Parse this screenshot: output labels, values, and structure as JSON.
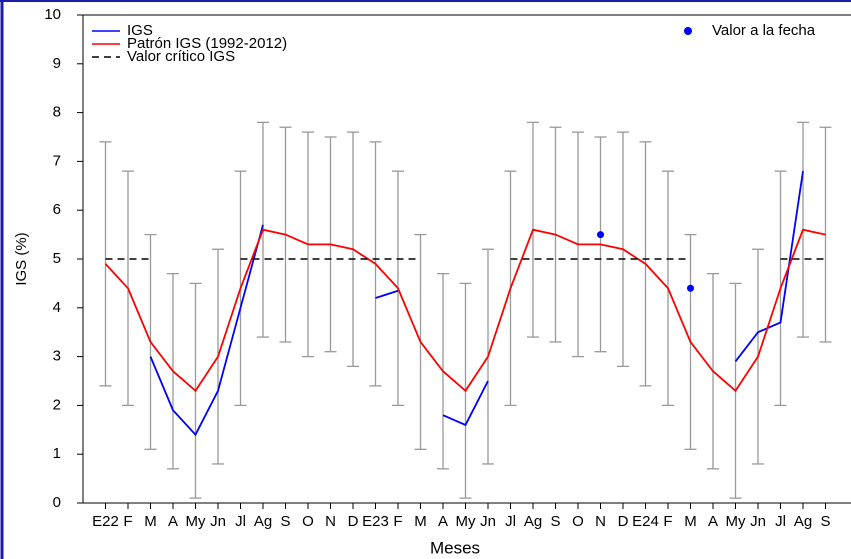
{
  "chart_data": {
    "type": "line",
    "x_label": "Meses",
    "y_label": "IGS (%)",
    "categories": [
      "E22",
      "F",
      "M",
      "A",
      "My",
      "Jn",
      "Jl",
      "Ag",
      "S",
      "O",
      "N",
      "D",
      "E23",
      "F",
      "M",
      "A",
      "My",
      "Jn",
      "Jl",
      "Ag",
      "S",
      "O",
      "N",
      "D",
      "E24",
      "F",
      "M",
      "A",
      "My",
      "Jn",
      "Jl",
      "Ag",
      "S"
    ],
    "ylim": [
      0,
      10
    ],
    "yticks": [
      0,
      1,
      2,
      3,
      4,
      5,
      6,
      7,
      8,
      9,
      10
    ],
    "series": [
      {
        "name": "IGS",
        "color": "#0000ff",
        "style": "solid",
        "values": [
          null,
          null,
          3.0,
          1.9,
          1.4,
          2.3,
          4.0,
          5.7,
          null,
          null,
          null,
          null,
          4.2,
          4.35,
          null,
          1.8,
          1.6,
          2.5,
          null,
          null,
          null,
          null,
          null,
          null,
          null,
          null,
          null,
          null,
          2.9,
          3.5,
          3.7,
          6.8,
          null
        ]
      },
      {
        "name": "Patrón IGS (1992-2012)",
        "color": "#ff0000",
        "style": "solid",
        "values": [
          4.9,
          4.4,
          3.3,
          2.7,
          2.3,
          3.0,
          4.4,
          5.6,
          5.5,
          5.3,
          5.3,
          5.2,
          4.9,
          4.4,
          3.3,
          2.7,
          2.3,
          3.0,
          4.4,
          5.6,
          5.5,
          5.3,
          5.3,
          5.2,
          4.9,
          4.4,
          3.3,
          2.7,
          2.3,
          3.0,
          4.4,
          5.6,
          5.5
        ]
      },
      {
        "name": "Valor crítico IGS",
        "color": "#000000",
        "style": "dashed",
        "values": [
          5,
          5,
          5,
          null,
          null,
          null,
          5,
          5,
          5,
          5,
          5,
          5,
          5,
          5,
          5,
          null,
          null,
          null,
          5,
          5,
          5,
          5,
          5,
          5,
          5,
          5,
          5,
          null,
          null,
          null,
          5,
          5,
          5
        ]
      },
      {
        "name": "Valor a la fecha",
        "color": "#0000ff",
        "style": "points",
        "values": [
          null,
          null,
          null,
          null,
          null,
          null,
          null,
          null,
          null,
          null,
          null,
          null,
          null,
          null,
          null,
          null,
          null,
          null,
          null,
          null,
          null,
          null,
          5.5,
          null,
          null,
          null,
          4.4,
          null,
          null,
          null,
          null,
          null,
          null
        ]
      }
    ],
    "error_bars": {
      "color": "#999999",
      "low": [
        2.4,
        2.0,
        1.1,
        0.7,
        0.1,
        0.8,
        2.0,
        3.4,
        3.3,
        3.0,
        3.1,
        2.8,
        2.4,
        2.0,
        1.1,
        0.7,
        0.1,
        0.8,
        2.0,
        3.4,
        3.3,
        3.0,
        3.1,
        2.8,
        2.4,
        2.0,
        1.1,
        0.7,
        0.1,
        0.8,
        2.0,
        3.4,
        3.3
      ],
      "high": [
        7.4,
        6.8,
        5.5,
        4.7,
        4.5,
        5.2,
        6.8,
        7.8,
        7.7,
        7.6,
        7.5,
        7.6,
        7.4,
        6.8,
        5.5,
        4.7,
        4.5,
        5.2,
        6.8,
        7.8,
        7.7,
        7.6,
        7.5,
        7.6,
        7.4,
        6.8,
        5.5,
        4.7,
        4.5,
        5.2,
        6.8,
        7.8,
        7.7
      ]
    }
  }
}
